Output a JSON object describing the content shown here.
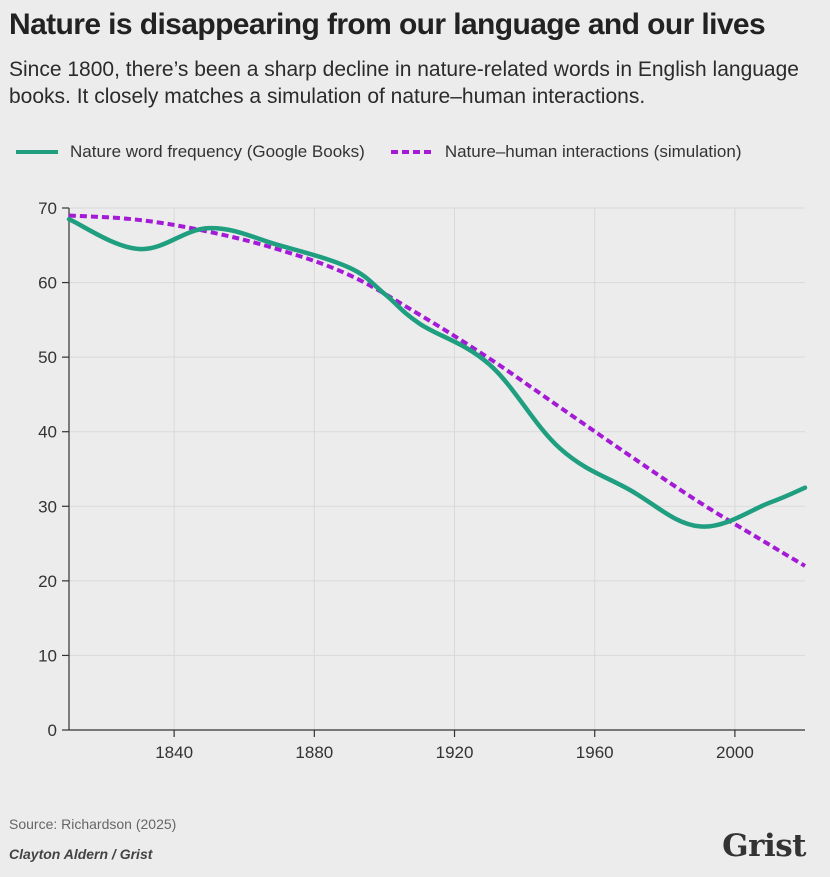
{
  "header": {
    "title": "Nature is disappearing from our language and our lives",
    "subtitle": "Since 1800, there’s been a sharp decline in nature-related words in English language books. It closely matches a simulation of nature–human interactions."
  },
  "colors": {
    "series_1": "#1f9e80",
    "series_2": "#a51ad6",
    "grid": "#d9d9d9",
    "axis": "#333333"
  },
  "chart_data": {
    "type": "line",
    "xlim": [
      1810,
      2020
    ],
    "ylim": [
      0,
      70
    ],
    "x_ticks": [
      1840,
      1880,
      1920,
      1960,
      2000
    ],
    "y_ticks": [
      0,
      10,
      20,
      30,
      40,
      50,
      60,
      70
    ],
    "grid": true,
    "legend_position": "top",
    "series": [
      {
        "name": "Nature word frequency (Google Books)",
        "style": "solid",
        "x": [
          1810,
          1830,
          1850,
          1870,
          1890,
          1900,
          1910,
          1930,
          1950,
          1970,
          1990,
          2010,
          2020
        ],
        "values": [
          68.5,
          64.5,
          67.3,
          65.0,
          62.0,
          58.5,
          54.5,
          49.0,
          37.8,
          32.2,
          27.3,
          30.5,
          32.5
        ]
      },
      {
        "name": "Nature–human interactions (simulation)",
        "style": "dashed",
        "x": [
          1810,
          1830,
          1850,
          1870,
          1890,
          1910,
          1930,
          1950,
          1970,
          1990,
          2010,
          2020
        ],
        "values": [
          69.0,
          68.4,
          66.8,
          64.4,
          61.0,
          55.7,
          49.8,
          43.3,
          36.8,
          30.5,
          24.8,
          22.0
        ]
      }
    ]
  },
  "footer": {
    "source": "Source: Richardson (2025)",
    "credit": "Clayton Aldern / Grist",
    "logo": "Grist"
  }
}
